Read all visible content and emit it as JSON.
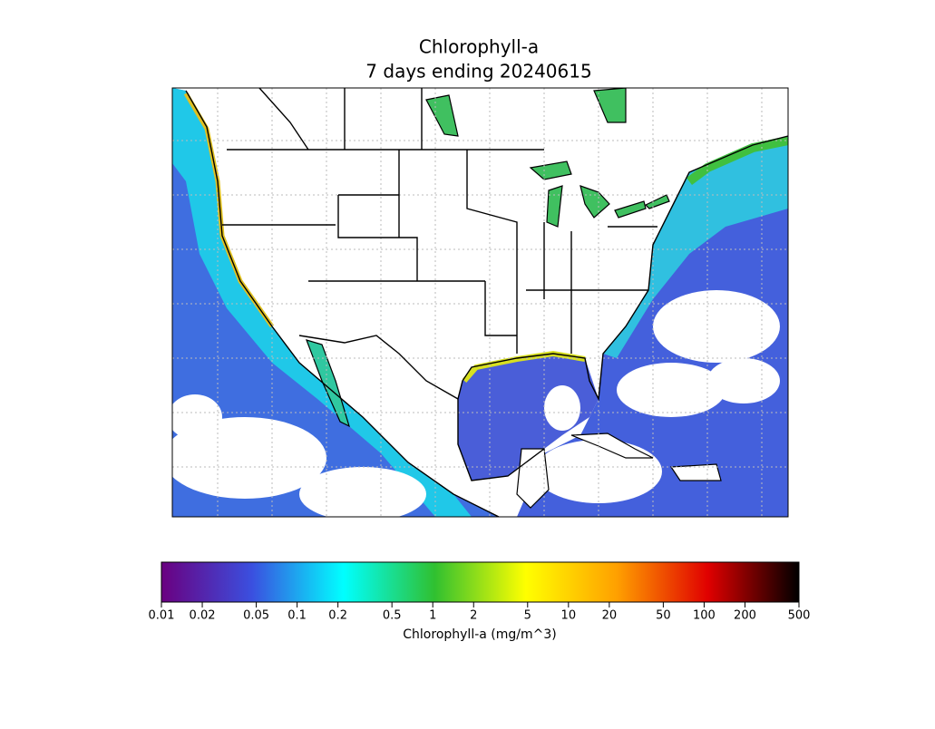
{
  "chart_data": {
    "type": "colorbar-map",
    "title": "Chlorophyll-a",
    "subtitle": "7 days ending 20240615",
    "colorbar_label": "Chlorophyll-a (mg/m^3)",
    "log_scale": true,
    "clim": [
      0.01,
      500
    ],
    "cticks": [
      0.01,
      0.02,
      0.05,
      0.1,
      0.2,
      0.5,
      1,
      2,
      5,
      10,
      20,
      50,
      100,
      200,
      500
    ],
    "colormap": [
      "#6a0080",
      "#3a50e0",
      "#00ffff",
      "#30c030",
      "#ffff00",
      "#ffa000",
      "#e00000",
      "#000000"
    ]
  }
}
